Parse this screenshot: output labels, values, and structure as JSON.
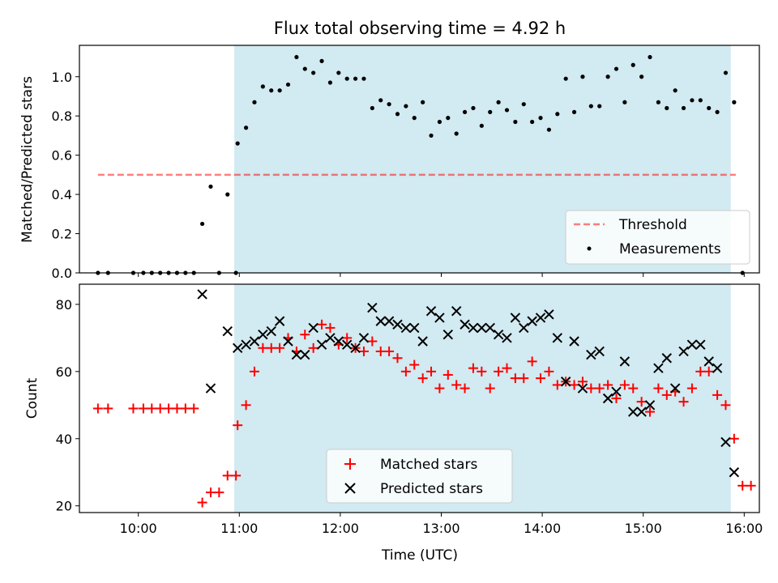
{
  "title": "Flux total observing time = 4.92 h",
  "colors": {
    "shade": "#add8e6",
    "threshold": "#ff0000",
    "measurement": "#000000",
    "matched": "#ff0000",
    "predicted": "#000000"
  },
  "chart_data": [
    {
      "type": "scatter",
      "ylabel": "Matched/Predicted stars",
      "xlim": [
        "09:25",
        "16:09"
      ],
      "ylim": [
        0,
        1.16
      ],
      "yticks": [
        "0.0",
        "0.2",
        "0.4",
        "0.6",
        "0.8",
        "1.0"
      ],
      "shaded_span": [
        "10:57",
        "15:52"
      ],
      "legend_position": "lower right",
      "threshold": {
        "name": "Threshold",
        "value": 0.5,
        "x": [
          "09:36",
          "15:55"
        ]
      },
      "measurements": {
        "name": "Measurements",
        "points": [
          [
            "09:36",
            0.0
          ],
          [
            "09:42",
            0.0
          ],
          [
            "09:57",
            0.0
          ],
          [
            "10:03",
            0.0
          ],
          [
            "10:08",
            0.0
          ],
          [
            "10:13",
            0.0
          ],
          [
            "10:18",
            0.0
          ],
          [
            "10:23",
            0.0
          ],
          [
            "10:28",
            0.0
          ],
          [
            "10:33",
            0.0
          ],
          [
            "10:38",
            0.25
          ],
          [
            "10:43",
            0.44
          ],
          [
            "10:48",
            0.0
          ],
          [
            "10:53",
            0.4
          ],
          [
            "10:58",
            0.0
          ],
          [
            "10:59",
            0.66
          ],
          [
            "11:04",
            0.74
          ],
          [
            "11:09",
            0.87
          ],
          [
            "11:14",
            0.95
          ],
          [
            "11:19",
            0.93
          ],
          [
            "11:24",
            0.93
          ],
          [
            "11:29",
            0.96
          ],
          [
            "11:34",
            1.1
          ],
          [
            "11:39",
            1.04
          ],
          [
            "11:44",
            1.02
          ],
          [
            "11:49",
            1.08
          ],
          [
            "11:54",
            0.97
          ],
          [
            "11:59",
            1.02
          ],
          [
            "12:04",
            0.99
          ],
          [
            "12:09",
            0.99
          ],
          [
            "12:14",
            0.99
          ],
          [
            "12:19",
            0.84
          ],
          [
            "12:24",
            0.88
          ],
          [
            "12:29",
            0.86
          ],
          [
            "12:34",
            0.81
          ],
          [
            "12:39",
            0.85
          ],
          [
            "12:44",
            0.79
          ],
          [
            "12:49",
            0.87
          ],
          [
            "12:54",
            0.7
          ],
          [
            "12:59",
            0.77
          ],
          [
            "13:04",
            0.79
          ],
          [
            "13:09",
            0.71
          ],
          [
            "13:14",
            0.82
          ],
          [
            "13:19",
            0.84
          ],
          [
            "13:24",
            0.75
          ],
          [
            "13:29",
            0.82
          ],
          [
            "13:34",
            0.87
          ],
          [
            "13:39",
            0.83
          ],
          [
            "13:44",
            0.77
          ],
          [
            "13:49",
            0.86
          ],
          [
            "13:54",
            0.77
          ],
          [
            "13:59",
            0.79
          ],
          [
            "14:04",
            0.73
          ],
          [
            "14:09",
            0.81
          ],
          [
            "14:14",
            0.99
          ],
          [
            "14:19",
            0.82
          ],
          [
            "14:24",
            1.0
          ],
          [
            "14:29",
            0.85
          ],
          [
            "14:34",
            0.85
          ],
          [
            "14:39",
            1.0
          ],
          [
            "14:44",
            1.04
          ],
          [
            "14:49",
            0.87
          ],
          [
            "14:54",
            1.06
          ],
          [
            "14:59",
            1.0
          ],
          [
            "15:04",
            1.1
          ],
          [
            "15:09",
            0.87
          ],
          [
            "15:14",
            0.84
          ],
          [
            "15:19",
            0.93
          ],
          [
            "15:24",
            0.84
          ],
          [
            "15:29",
            0.88
          ],
          [
            "15:34",
            0.88
          ],
          [
            "15:39",
            0.84
          ],
          [
            "15:44",
            0.82
          ],
          [
            "15:49",
            1.02
          ],
          [
            "15:54",
            0.87
          ],
          [
            "15:59",
            0.0
          ]
        ]
      }
    },
    {
      "type": "scatter",
      "xlabel": "Time (UTC)",
      "ylabel": "Count",
      "xlim": [
        "09:25",
        "16:09"
      ],
      "ylim": [
        18,
        86
      ],
      "yticks": [
        "20",
        "40",
        "60",
        "80"
      ],
      "xticks": [
        "10:00",
        "11:00",
        "12:00",
        "13:00",
        "14:00",
        "15:00",
        "16:00"
      ],
      "shaded_span": [
        "10:57",
        "15:52"
      ],
      "legend_position": "lower center",
      "series": [
        {
          "name": "Matched stars",
          "marker": "+",
          "points": [
            [
              "09:36",
              49
            ],
            [
              "09:42",
              49
            ],
            [
              "09:57",
              49
            ],
            [
              "10:03",
              49
            ],
            [
              "10:08",
              49
            ],
            [
              "10:13",
              49
            ],
            [
              "10:18",
              49
            ],
            [
              "10:23",
              49
            ],
            [
              "10:28",
              49
            ],
            [
              "10:33",
              49
            ],
            [
              "10:38",
              21
            ],
            [
              "10:43",
              24
            ],
            [
              "10:48",
              24
            ],
            [
              "10:53",
              29
            ],
            [
              "10:58",
              29
            ],
            [
              "10:59",
              44
            ],
            [
              "11:04",
              50
            ],
            [
              "11:09",
              60
            ],
            [
              "11:14",
              67
            ],
            [
              "11:19",
              67
            ],
            [
              "11:24",
              67
            ],
            [
              "11:29",
              70
            ],
            [
              "11:34",
              66
            ],
            [
              "11:39",
              71
            ],
            [
              "11:44",
              67
            ],
            [
              "11:49",
              74
            ],
            [
              "11:54",
              73
            ],
            [
              "11:59",
              68
            ],
            [
              "12:04",
              70
            ],
            [
              "12:09",
              67
            ],
            [
              "12:14",
              66
            ],
            [
              "12:19",
              69
            ],
            [
              "12:24",
              66
            ],
            [
              "12:29",
              66
            ],
            [
              "12:34",
              64
            ],
            [
              "12:39",
              60
            ],
            [
              "12:44",
              62
            ],
            [
              "12:49",
              58
            ],
            [
              "12:54",
              60
            ],
            [
              "12:59",
              55
            ],
            [
              "13:04",
              59
            ],
            [
              "13:09",
              56
            ],
            [
              "13:14",
              55
            ],
            [
              "13:19",
              61
            ],
            [
              "13:24",
              60
            ],
            [
              "13:29",
              55
            ],
            [
              "13:34",
              60
            ],
            [
              "13:39",
              61
            ],
            [
              "13:44",
              58
            ],
            [
              "13:49",
              58
            ],
            [
              "13:54",
              63
            ],
            [
              "13:59",
              58
            ],
            [
              "14:04",
              60
            ],
            [
              "14:09",
              56
            ],
            [
              "14:14",
              57
            ],
            [
              "14:19",
              56
            ],
            [
              "14:24",
              57
            ],
            [
              "14:29",
              55
            ],
            [
              "14:34",
              55
            ],
            [
              "14:39",
              56
            ],
            [
              "14:44",
              52
            ],
            [
              "14:49",
              56
            ],
            [
              "14:54",
              55
            ],
            [
              "14:59",
              51
            ],
            [
              "15:04",
              48
            ],
            [
              "15:09",
              55
            ],
            [
              "15:14",
              53
            ],
            [
              "15:19",
              54
            ],
            [
              "15:24",
              51
            ],
            [
              "15:29",
              55
            ],
            [
              "15:34",
              60
            ],
            [
              "15:39",
              60
            ],
            [
              "15:44",
              53
            ],
            [
              "15:49",
              50
            ],
            [
              "15:54",
              40
            ],
            [
              "15:59",
              26
            ],
            [
              "16:04",
              26
            ]
          ]
        },
        {
          "name": "Predicted stars",
          "marker": "x",
          "points": [
            [
              "10:38",
              83
            ],
            [
              "10:43",
              55
            ],
            [
              "10:53",
              72
            ],
            [
              "10:59",
              67
            ],
            [
              "11:04",
              68
            ],
            [
              "11:09",
              69
            ],
            [
              "11:14",
              71
            ],
            [
              "11:19",
              72
            ],
            [
              "11:24",
              75
            ],
            [
              "11:29",
              69
            ],
            [
              "11:34",
              65
            ],
            [
              "11:39",
              65
            ],
            [
              "11:44",
              73
            ],
            [
              "11:49",
              68
            ],
            [
              "11:54",
              70
            ],
            [
              "11:59",
              69
            ],
            [
              "12:04",
              68
            ],
            [
              "12:09",
              67
            ],
            [
              "12:14",
              70
            ],
            [
              "12:19",
              79
            ],
            [
              "12:24",
              75
            ],
            [
              "12:29",
              75
            ],
            [
              "12:34",
              74
            ],
            [
              "12:39",
              73
            ],
            [
              "12:44",
              73
            ],
            [
              "12:49",
              69
            ],
            [
              "12:54",
              78
            ],
            [
              "12:59",
              76
            ],
            [
              "13:04",
              71
            ],
            [
              "13:09",
              78
            ],
            [
              "13:14",
              74
            ],
            [
              "13:19",
              73
            ],
            [
              "13:24",
              73
            ],
            [
              "13:29",
              73
            ],
            [
              "13:34",
              71
            ],
            [
              "13:39",
              70
            ],
            [
              "13:44",
              76
            ],
            [
              "13:49",
              73
            ],
            [
              "13:54",
              75
            ],
            [
              "13:59",
              76
            ],
            [
              "14:04",
              77
            ],
            [
              "14:09",
              70
            ],
            [
              "14:14",
              57
            ],
            [
              "14:19",
              69
            ],
            [
              "14:24",
              55
            ],
            [
              "14:29",
              65
            ],
            [
              "14:34",
              66
            ],
            [
              "14:39",
              52
            ],
            [
              "14:44",
              54
            ],
            [
              "14:49",
              63
            ],
            [
              "14:54",
              48
            ],
            [
              "14:59",
              48
            ],
            [
              "15:04",
              50
            ],
            [
              "15:09",
              61
            ],
            [
              "15:14",
              64
            ],
            [
              "15:19",
              55
            ],
            [
              "15:24",
              66
            ],
            [
              "15:29",
              68
            ],
            [
              "15:34",
              68
            ],
            [
              "15:39",
              63
            ],
            [
              "15:44",
              61
            ],
            [
              "15:49",
              39
            ],
            [
              "15:54",
              30
            ]
          ]
        }
      ]
    }
  ]
}
